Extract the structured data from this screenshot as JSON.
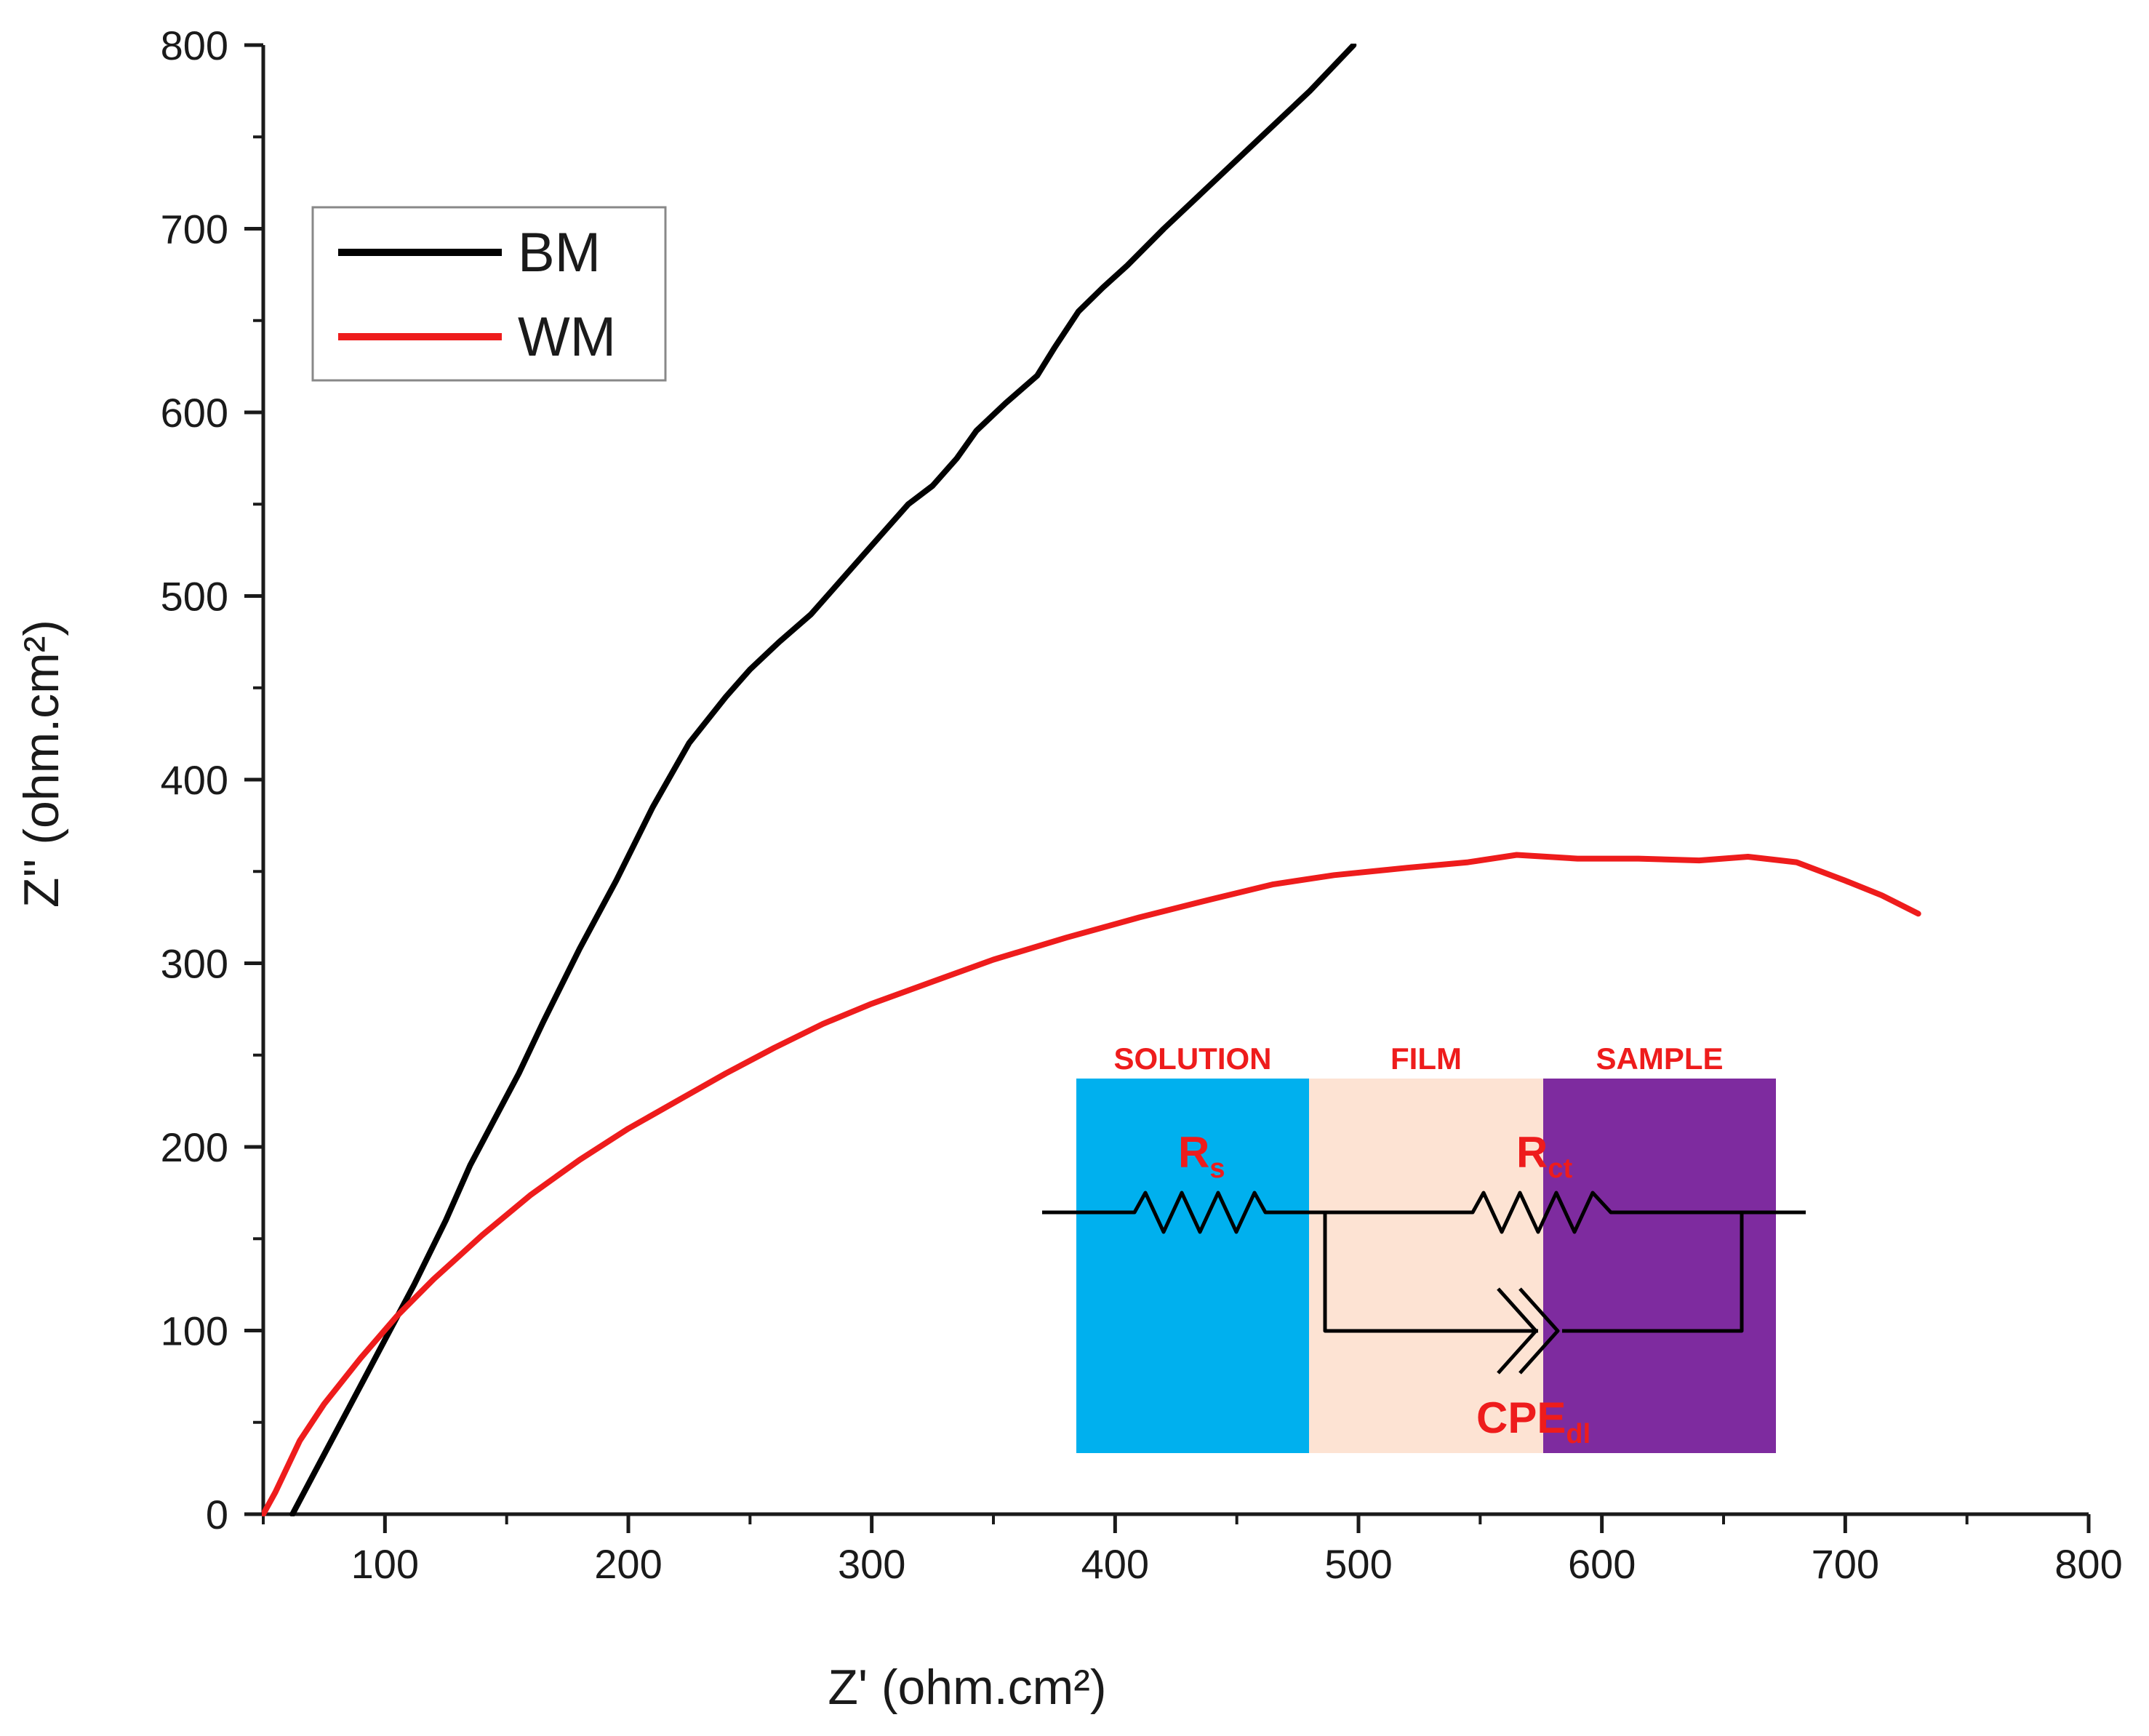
{
  "chart_data": {
    "type": "line",
    "title": "",
    "xlabel": "Z' (ohm.cm²)",
    "ylabel": "Z'' (ohm.cm²)",
    "xlim": [
      50,
      800
    ],
    "ylim": [
      0,
      800
    ],
    "x_major_ticks": [
      100,
      200,
      300,
      400,
      500,
      600,
      700,
      800
    ],
    "y_major_ticks": [
      0,
      100,
      200,
      300,
      400,
      500,
      600,
      700,
      800
    ],
    "minor_step": 50,
    "legend_position": "top-left",
    "series": [
      {
        "name": "BM",
        "color": "#000000",
        "x": [
          62,
          70,
          80,
          90,
          100,
          112,
          125,
          135,
          145,
          155,
          165,
          180,
          195,
          210,
          225,
          240,
          250,
          262,
          275,
          285,
          295,
          305,
          315,
          325,
          335,
          343,
          355,
          368,
          375,
          385,
          395,
          405,
          420,
          440,
          460,
          480,
          498
        ],
        "y": [
          0,
          20,
          45,
          70,
          95,
          125,
          160,
          190,
          215,
          240,
          268,
          308,
          345,
          385,
          420,
          445,
          460,
          475,
          490,
          505,
          520,
          535,
          550,
          560,
          575,
          590,
          605,
          620,
          635,
          655,
          668,
          680,
          700,
          725,
          750,
          775,
          800
        ]
      },
      {
        "name": "WM",
        "color": "#ee1c1c",
        "x": [
          50,
          55,
          65,
          75,
          90,
          105,
          120,
          140,
          160,
          180,
          200,
          220,
          240,
          260,
          280,
          300,
          325,
          350,
          380,
          410,
          440,
          465,
          490,
          520,
          545,
          565,
          590,
          615,
          640,
          660,
          680,
          700,
          715,
          730
        ],
        "y": [
          0,
          12,
          40,
          60,
          85,
          108,
          128,
          152,
          174,
          193,
          210,
          225,
          240,
          254,
          267,
          278,
          290,
          302,
          314,
          325,
          335,
          343,
          348,
          352,
          355,
          359,
          357,
          357,
          356,
          358,
          355,
          345,
          337,
          327
        ]
      }
    ]
  },
  "inset": {
    "regions": [
      {
        "label": "SOLUTION",
        "color": "#00b0ee"
      },
      {
        "label": "FILM",
        "color": "#fde3d3"
      },
      {
        "label": "SAMPLE",
        "color": "#7e2b9f"
      }
    ],
    "region_label_color": "#ee1c1c",
    "element_label_color": "#ee1c1c",
    "rs_main": "R",
    "rs_sub": "s",
    "rct_main": "R",
    "rct_sub": "ct",
    "cpe_main": "CPE",
    "cpe_sub": "dl"
  }
}
